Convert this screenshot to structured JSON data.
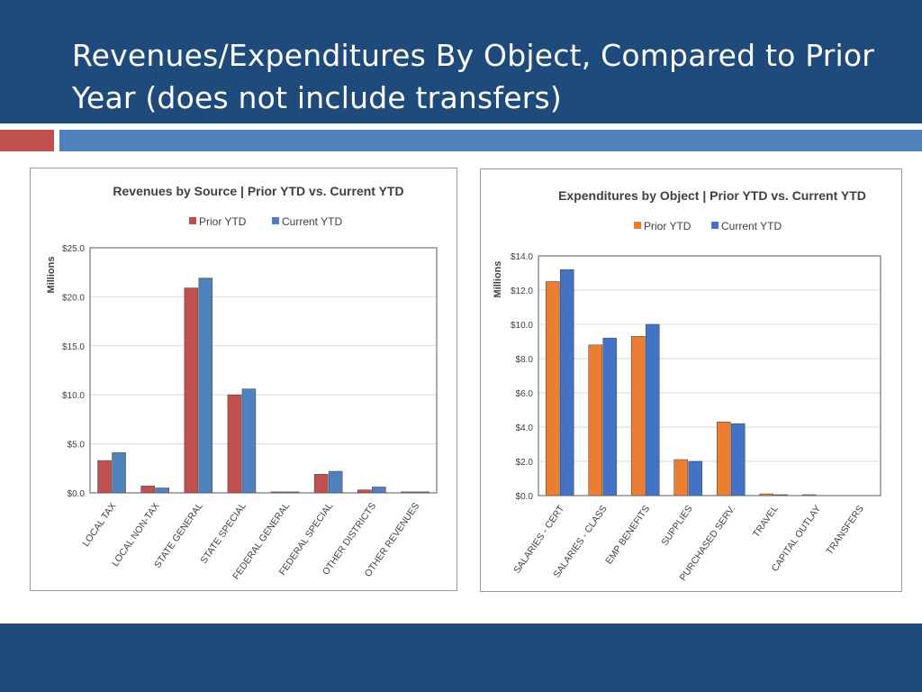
{
  "slide": {
    "title": "Revenues/Expenditures By Object, Compared to Prior Year (does not include transfers)"
  },
  "colors": {
    "header": "#1f4a7c",
    "accent_red": "#c0504d",
    "accent_blue": "#4f81bd"
  },
  "chart_data": [
    {
      "type": "bar",
      "title": "Revenues by Source | Prior YTD vs. Current YTD",
      "ylabel": "Millions",
      "xlabel": "",
      "ylim": [
        0,
        25
      ],
      "yticks": [
        "$0.0",
        "$5.0",
        "$10.0",
        "$15.0",
        "$20.0",
        "$25.0"
      ],
      "grid": true,
      "legend": "top-center",
      "categories": [
        "LOCAL TAX",
        "LOCAL NON-TAX",
        "STATE GENERAL",
        "STATE SPECIAL",
        "FEDERAL GENERAL",
        "FEDERAL SPECIAL",
        "OTHER DISTRICTS",
        "OTHER REVENUES"
      ],
      "series": [
        {
          "name": "Prior YTD",
          "color": "#c0504d",
          "values": [
            3.3,
            0.7,
            20.9,
            10.0,
            0.1,
            1.9,
            0.3,
            0.1
          ]
        },
        {
          "name": "Current YTD",
          "color": "#4f81bd",
          "values": [
            4.1,
            0.5,
            21.9,
            10.6,
            0.1,
            2.2,
            0.6,
            0.1
          ]
        }
      ]
    },
    {
      "type": "bar",
      "title": "Expenditures by Object | Prior YTD vs. Current YTD",
      "ylabel": "Millions",
      "xlabel": "",
      "ylim": [
        0,
        14
      ],
      "yticks": [
        "$0.0",
        "$2.0",
        "$4.0",
        "$6.0",
        "$8.0",
        "$10.0",
        "$12.0",
        "$14.0"
      ],
      "grid": true,
      "legend": "top-center",
      "categories": [
        "SALARIES - CERT",
        "SALARIES - CLASS",
        "EMP BENEFITS",
        "SUPPLIES",
        "PURCHASED SERV.",
        "TRAVEL",
        "CAPITAL OUTLAY",
        "TRANSFERS"
      ],
      "series": [
        {
          "name": "Prior YTD",
          "color": "#ed7d31",
          "values": [
            12.5,
            8.8,
            9.3,
            2.1,
            4.3,
            0.1,
            0.05,
            0.0
          ]
        },
        {
          "name": "Current YTD",
          "color": "#4472c4",
          "values": [
            13.2,
            9.2,
            10.0,
            2.0,
            4.2,
            0.05,
            0.0,
            0.0
          ]
        }
      ]
    }
  ]
}
